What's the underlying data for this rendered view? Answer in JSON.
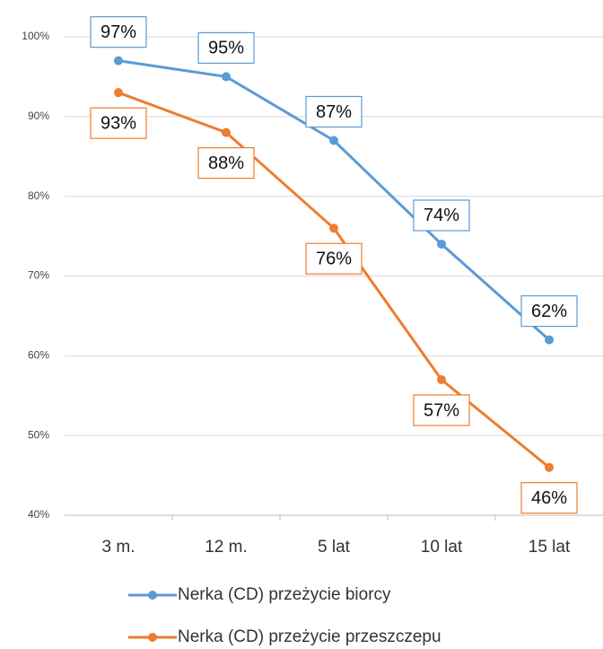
{
  "chart_data": {
    "type": "line",
    "categories": [
      "3 m.",
      "12 m.",
      "5 lat",
      "10 lat",
      "15 lat"
    ],
    "series": [
      {
        "name": "Nerka (CD) przeżycie biorcy",
        "color": "#5b9bd5",
        "values": [
          97,
          95,
          87,
          74,
          62
        ],
        "value_labels": [
          "97%",
          "95%",
          "87%",
          "74%",
          "62%"
        ]
      },
      {
        "name": "Nerka (CD) przeżycie przeszczepu",
        "color": "#ed7d31",
        "values": [
          93,
          88,
          76,
          57,
          46
        ],
        "value_labels": [
          "93%",
          "88%",
          "76%",
          "57%",
          "46%"
        ]
      }
    ],
    "ylim": [
      40,
      100
    ],
    "yticks": [
      {
        "value": 40,
        "label": "40%"
      },
      {
        "value": 50,
        "label": "50%"
      },
      {
        "value": 60,
        "label": "60%"
      },
      {
        "value": 70,
        "label": "70%"
      },
      {
        "value": 80,
        "label": "80%"
      },
      {
        "value": 90,
        "label": "90%"
      },
      {
        "value": 100,
        "label": "100%"
      }
    ],
    "grid": true,
    "legend": "bottom"
  }
}
